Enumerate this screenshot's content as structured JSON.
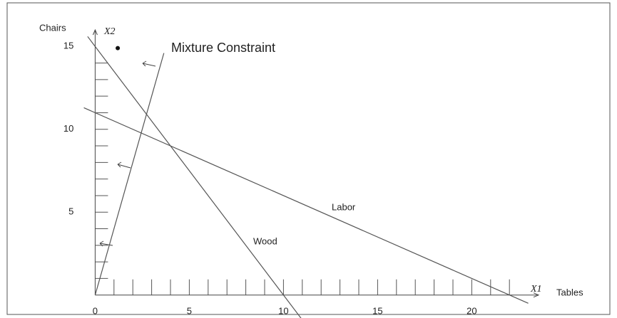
{
  "chart_data": {
    "type": "line",
    "ylabel": "Chairs",
    "yvariable": "X2",
    "xlabel": "Tables",
    "xvariable": "X1",
    "xlim": [
      -1,
      24
    ],
    "ylim": [
      -1,
      16
    ],
    "xticks": [
      0,
      5,
      10,
      15,
      20
    ],
    "yticks": [
      5,
      10,
      15
    ],
    "xminorticks": [
      1,
      2,
      3,
      4,
      5,
      6,
      7,
      8,
      9,
      10,
      11,
      12,
      13,
      14,
      15,
      16,
      17,
      18,
      19,
      20,
      21,
      22
    ],
    "yminorticks": [
      1,
      2,
      3,
      4,
      5,
      6,
      7,
      8,
      9,
      10,
      11,
      12,
      13,
      14
    ],
    "color": "#555",
    "series": [
      {
        "name": "Mixture Constraint",
        "x": [
          0,
          3.65
        ],
        "values": [
          0,
          14.6
        ]
      },
      {
        "name": "Wood",
        "x": [
          -0.4,
          11
        ],
        "values": [
          15.6,
          -1.5
        ]
      },
      {
        "name": "Labor",
        "x": [
          -0.6,
          23
        ],
        "values": [
          11.3,
          -0.5
        ]
      }
    ],
    "points": {
      "x": [
        1.2
      ],
      "values": [
        14.9
      ]
    }
  }
}
